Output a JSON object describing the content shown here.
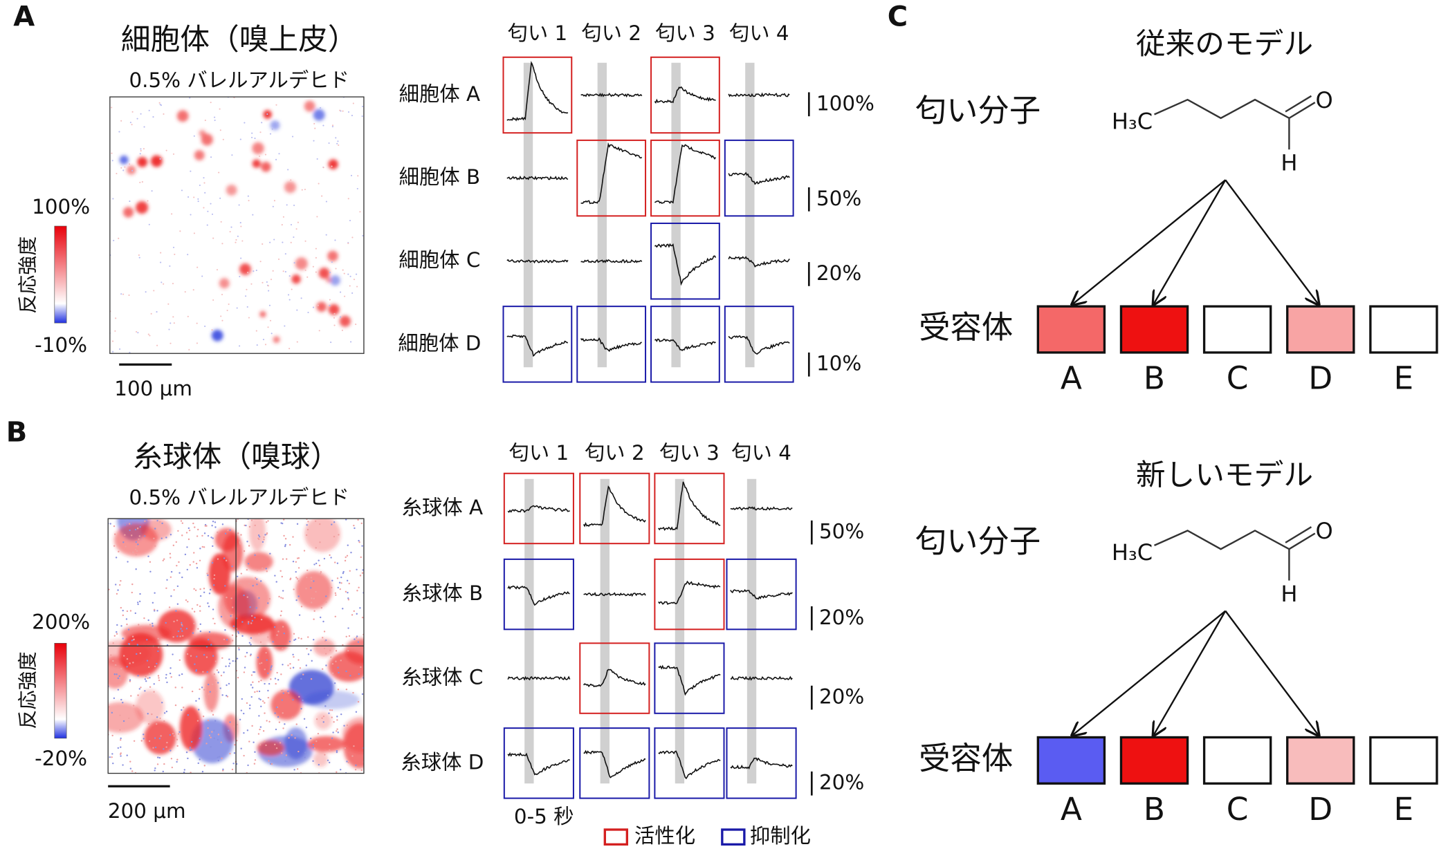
{
  "panel_a": {
    "label": "A",
    "title": "細胞体（嗅上皮）",
    "stimulus": "0.5% バレルアルデヒド",
    "colorbar": {
      "label": "反応強度",
      "max": "100%",
      "min": "-10%"
    },
    "scale_bar": "100 μm",
    "odors": [
      "匂い 1",
      "匂い 2",
      "匂い 3",
      "匂い 4"
    ],
    "rows": [
      {
        "label": "細胞体 A",
        "scale": "100%",
        "frames": [
          "#d42020",
          null,
          "#d42020",
          null
        ]
      },
      {
        "label": "細胞体 B",
        "scale": "50%",
        "frames": [
          null,
          "#d42020",
          "#d42020",
          "#1a1aa8"
        ]
      },
      {
        "label": "細胞体 C",
        "scale": "20%",
        "frames": [
          null,
          null,
          "#1a1aa8",
          null
        ]
      },
      {
        "label": "細胞体 D",
        "scale": "10%",
        "frames": [
          "#1a1aa8",
          "#1a1aa8",
          "#1a1aa8",
          "#1a1aa8"
        ]
      }
    ]
  },
  "panel_b": {
    "label": "B",
    "title": "糸球体（嗅球）",
    "stimulus": "0.5% バレルアルデヒド",
    "colorbar": {
      "label": "反応強度",
      "max": "200%",
      "min": "-20%"
    },
    "scale_bar": "200 μm",
    "odors": [
      "匂い 1",
      "匂い 2",
      "匂い 3",
      "匂い 4"
    ],
    "rows": [
      {
        "label": "糸球体 A",
        "scale": "50%",
        "frames": [
          "#d42020",
          "#d42020",
          "#d42020",
          null
        ]
      },
      {
        "label": "糸球体 B",
        "scale": "20%",
        "frames": [
          "#1a1aa8",
          null,
          "#d42020",
          "#1a1aa8"
        ]
      },
      {
        "label": "糸球体 C",
        "scale": "20%",
        "frames": [
          null,
          "#d42020",
          "#1a1aa8",
          null
        ]
      },
      {
        "label": "糸球体 D",
        "scale": "20%",
        "frames": [
          "#1a1aa8",
          "#1a1aa8",
          "#1a1aa8",
          "#1a1aa8"
        ]
      }
    ],
    "time": "0-5 秒"
  },
  "legend": [
    {
      "label": "活性化",
      "color": "#d42020"
    },
    {
      "label": "抑制化",
      "color": "#1a1aa8"
    }
  ],
  "panel_c": {
    "label": "C",
    "models": [
      {
        "title": "従来のモデル",
        "molecule_label": "匂い分子",
        "molecule": {
          "h3c": "H₃C",
          "o": "O",
          "h": "H"
        },
        "receptor_label": "受容体",
        "receptors": [
          {
            "name": "A",
            "color": "#f46868"
          },
          {
            "name": "B",
            "color": "#ee1111"
          },
          {
            "name": "C",
            "color": "#ffffff"
          },
          {
            "name": "D",
            "color": "#f8a4a4"
          },
          {
            "name": "E",
            "color": "#ffffff"
          }
        ]
      },
      {
        "title": "新しいモデル",
        "molecule_label": "匂い分子",
        "molecule": {
          "h3c": "H₃C",
          "o": "O",
          "h": "H"
        },
        "receptor_label": "受容体",
        "receptors": [
          {
            "name": "A",
            "color": "#5a5cf2"
          },
          {
            "name": "B",
            "color": "#ee1111"
          },
          {
            "name": "C",
            "color": "#ffffff"
          },
          {
            "name": "D",
            "color": "#f8bcbc"
          },
          {
            "name": "E",
            "color": "#ffffff"
          }
        ]
      }
    ]
  }
}
